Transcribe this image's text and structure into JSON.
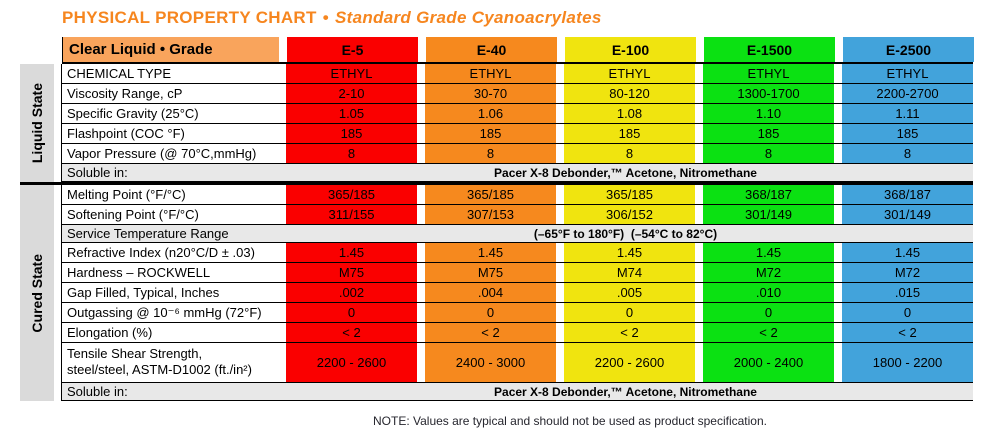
{
  "title": {
    "main": "PHYSICAL PROPERTY CHART",
    "separator": "•",
    "subtitle": "Standard Grade Cyanoacrylates",
    "color": "#F6861F"
  },
  "header": {
    "label": "Clear Liquid • Grade",
    "label_color": "#F9A45C",
    "columns": [
      {
        "name": "E-5",
        "color": "#FA0000"
      },
      {
        "name": "E-40",
        "color": "#F6891E"
      },
      {
        "name": "E-100",
        "color": "#F0E40F"
      },
      {
        "name": "E-1500",
        "color": "#0BE112"
      },
      {
        "name": "E-2500",
        "color": "#42A3DB"
      }
    ]
  },
  "liquid": {
    "section_label": "Liquid State",
    "rows": [
      {
        "label": "CHEMICAL TYPE",
        "values": [
          "ETHYL",
          "ETHYL",
          "ETHYL",
          "ETHYL",
          "ETHYL"
        ]
      },
      {
        "label": "Viscosity Range, cP",
        "values": [
          "2-10",
          "30-70",
          "80-120",
          "1300-1700",
          "2200-2700"
        ]
      },
      {
        "label": "Specific Gravity (25°C)",
        "values": [
          "1.05",
          "1.06",
          "1.08",
          "1.10",
          "1.11"
        ]
      },
      {
        "label": "Flashpoint (COC °F)",
        "values": [
          "185",
          "185",
          "185",
          "185",
          "185"
        ]
      },
      {
        "label": "Vapor Pressure (@ 70°C,mmHg)",
        "values": [
          "8",
          "8",
          "8",
          "8",
          "8"
        ]
      }
    ],
    "soluble": {
      "label": "Soluble in:",
      "value": "Pacer X-8 Debonder,™ Acetone, Nitromethane"
    }
  },
  "cured": {
    "section_label": "Cured State",
    "rows1": [
      {
        "label": "Melting Point (°F/°C)",
        "values": [
          "365/185",
          "365/185",
          "365/185",
          "368/187",
          "368/187"
        ]
      },
      {
        "label": "Softening Point (°F/°C)",
        "values": [
          "311/155",
          "307/153",
          "306/152",
          "301/149",
          "301/149"
        ]
      }
    ],
    "service": {
      "label": "Service Temperature Range",
      "value": "(–65°F to 180°F)  (–54°C to 82°C)"
    },
    "rows2": [
      {
        "label": "Refractive Index (n20°C/D ± .03)",
        "values": [
          "1.45",
          "1.45",
          "1.45",
          "1.45",
          "1.45"
        ]
      },
      {
        "label": "Hardness – ROCKWELL",
        "values": [
          "M75",
          "M75",
          "M74",
          "M72",
          "M72"
        ]
      },
      {
        "label": "Gap Filled, Typical, Inches",
        "values": [
          ".002",
          ".004",
          ".005",
          ".010",
          ".015"
        ]
      },
      {
        "label": "Outgassing @ 10⁻⁶ mmHg (72°F)",
        "values": [
          "0",
          "0",
          "0",
          "0",
          "0"
        ]
      },
      {
        "label": "Elongation (%)",
        "values": [
          "< 2",
          "< 2",
          "< 2",
          "< 2",
          "< 2"
        ]
      }
    ],
    "tensile": {
      "label_line1": "Tensile Shear Strength,",
      "label_line2": "steel/steel, ASTM-D1002 (ft./in²)",
      "values": [
        "2200 - 2600",
        "2400 - 3000",
        "2200 - 2600",
        "2000 - 2400",
        "1800 - 2200"
      ]
    },
    "soluble": {
      "label": "Soluble in:",
      "value": "Pacer X-8 Debonder,™ Acetone, Nitromethane"
    }
  },
  "note": "NOTE: Values are typical and should not be used as product specification.",
  "chart_data": {
    "type": "table",
    "title": "PHYSICAL PROPERTY CHART • Standard Grade Cyanoacrylates",
    "columns": [
      "Clear Liquid • Grade",
      "E-5",
      "E-40",
      "E-100",
      "E-1500",
      "E-2500"
    ],
    "sections": [
      {
        "name": "Liquid State",
        "rows": [
          [
            "CHEMICAL TYPE",
            "ETHYL",
            "ETHYL",
            "ETHYL",
            "ETHYL",
            "ETHYL"
          ],
          [
            "Viscosity Range, cP",
            "2-10",
            "30-70",
            "80-120",
            "1300-1700",
            "2200-2700"
          ],
          [
            "Specific Gravity (25°C)",
            "1.05",
            "1.06",
            "1.08",
            "1.10",
            "1.11"
          ],
          [
            "Flashpoint (COC °F)",
            "185",
            "185",
            "185",
            "185",
            "185"
          ],
          [
            "Vapor Pressure (@ 70°C,mmHg)",
            "8",
            "8",
            "8",
            "8",
            "8"
          ],
          [
            "Soluble in:",
            "Pacer X-8 Debonder,™ Acetone, Nitromethane"
          ]
        ]
      },
      {
        "name": "Cured State",
        "rows": [
          [
            "Melting Point (°F/°C)",
            "365/185",
            "365/185",
            "365/185",
            "368/187",
            "368/187"
          ],
          [
            "Softening Point (°F/°C)",
            "311/155",
            "307/153",
            "306/152",
            "301/149",
            "301/149"
          ],
          [
            "Service Temperature Range",
            "(–65°F to 180°F)  (–54°C to 82°C)"
          ],
          [
            "Refractive Index (n20°C/D ± .03)",
            "1.45",
            "1.45",
            "1.45",
            "1.45",
            "1.45"
          ],
          [
            "Hardness – ROCKWELL",
            "M75",
            "M75",
            "M74",
            "M72",
            "M72"
          ],
          [
            "Gap Filled, Typical, Inches",
            ".002",
            ".004",
            ".005",
            ".010",
            ".015"
          ],
          [
            "Outgassing @ 10⁻⁶ mmHg (72°F)",
            "0",
            "0",
            "0",
            "0",
            "0"
          ],
          [
            "Elongation (%)",
            "< 2",
            "< 2",
            "< 2",
            "< 2",
            "< 2"
          ],
          [
            "Tensile Shear Strength, steel/steel, ASTM-D1002 (ft./in²)",
            "2200 - 2600",
            "2400 - 3000",
            "2200 - 2600",
            "2000 - 2400",
            "1800 - 2200"
          ],
          [
            "Soluble in:",
            "Pacer X-8 Debonder,™ Acetone, Nitromethane"
          ]
        ]
      }
    ]
  }
}
